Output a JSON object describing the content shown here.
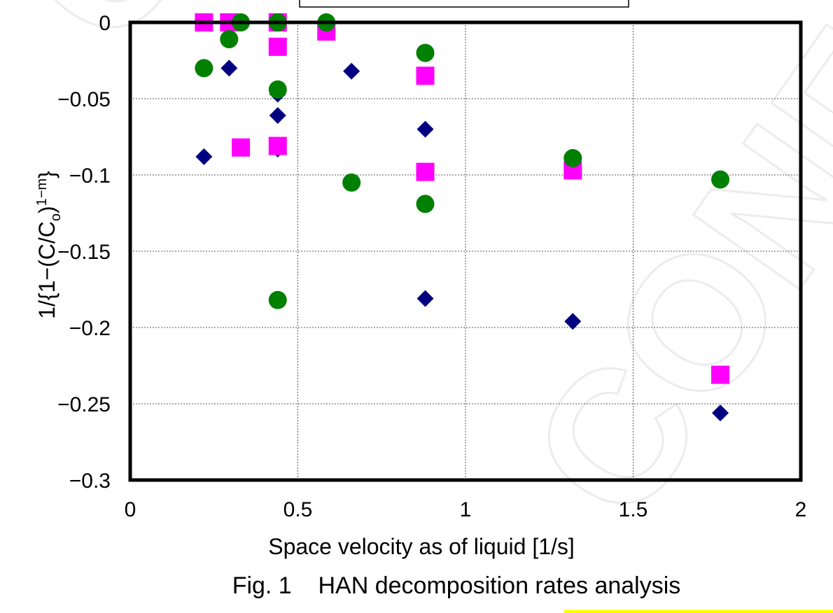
{
  "figure_caption": "Fig. 1    HAN decomposition rates analysis",
  "watermark_text": "CONFIDENTIAL",
  "colors": {
    "diamond": "#000080",
    "square": "#ff00ff",
    "circle": "#008000",
    "highlight": "#ffff00"
  },
  "chart_data": {
    "type": "scatter",
    "xlabel": "Space velocity as of liquid [1/s]",
    "ylabel": "1/{1−(C/C",
    "ylabel_sub_o": "o",
    "ylabel_sup": "1−m",
    "ylabel_close": "}",
    "xlim": [
      0,
      2
    ],
    "ylim": [
      -0.3,
      0
    ],
    "x_ticks": [
      {
        "value": 0,
        "label": "0"
      },
      {
        "value": 0.5,
        "label": "0.5"
      },
      {
        "value": 1,
        "label": "1"
      },
      {
        "value": 1.5,
        "label": "1.5"
      },
      {
        "value": 2,
        "label": "2"
      }
    ],
    "y_ticks": [
      {
        "value": 0,
        "label": "0"
      },
      {
        "value": -0.05,
        "label": "−0.05"
      },
      {
        "value": -0.1,
        "label": "−0.1"
      },
      {
        "value": -0.15,
        "label": "−0.15"
      },
      {
        "value": -0.2,
        "label": "−0.2"
      },
      {
        "value": -0.25,
        "label": "−0.25"
      },
      {
        "value": -0.3,
        "label": "−0.3"
      }
    ],
    "grid": true,
    "series": [
      {
        "marker": "diamond",
        "color": "#000080",
        "points": [
          [
            0.22,
            -0.088
          ],
          [
            0.295,
            -0.03
          ],
          [
            0.44,
            -0.047
          ],
          [
            0.44,
            -0.061
          ],
          [
            0.44,
            -0.083
          ],
          [
            0.66,
            -0.032
          ],
          [
            0.88,
            -0.07
          ],
          [
            0.88,
            -0.181
          ],
          [
            1.32,
            -0.196
          ],
          [
            1.76,
            -0.256
          ]
        ]
      },
      {
        "marker": "square",
        "color": "#ff00ff",
        "points": [
          [
            0.22,
            0.0
          ],
          [
            0.295,
            0.0
          ],
          [
            0.33,
            -0.082
          ],
          [
            0.44,
            0.0
          ],
          [
            0.44,
            -0.016
          ],
          [
            0.44,
            -0.081
          ],
          [
            0.585,
            -0.006
          ],
          [
            0.88,
            -0.035
          ],
          [
            0.88,
            -0.098
          ],
          [
            1.32,
            -0.097
          ],
          [
            1.76,
            -0.231
          ]
        ]
      },
      {
        "marker": "circle",
        "color": "#008000",
        "points": [
          [
            0.22,
            -0.03
          ],
          [
            0.295,
            -0.011
          ],
          [
            0.33,
            0.0
          ],
          [
            0.44,
            0.0
          ],
          [
            0.44,
            -0.044
          ],
          [
            0.44,
            -0.182
          ],
          [
            0.585,
            0.0
          ],
          [
            0.66,
            -0.105
          ],
          [
            0.88,
            -0.02
          ],
          [
            0.88,
            -0.119
          ],
          [
            1.32,
            -0.089
          ],
          [
            1.76,
            -0.103
          ]
        ]
      }
    ]
  }
}
